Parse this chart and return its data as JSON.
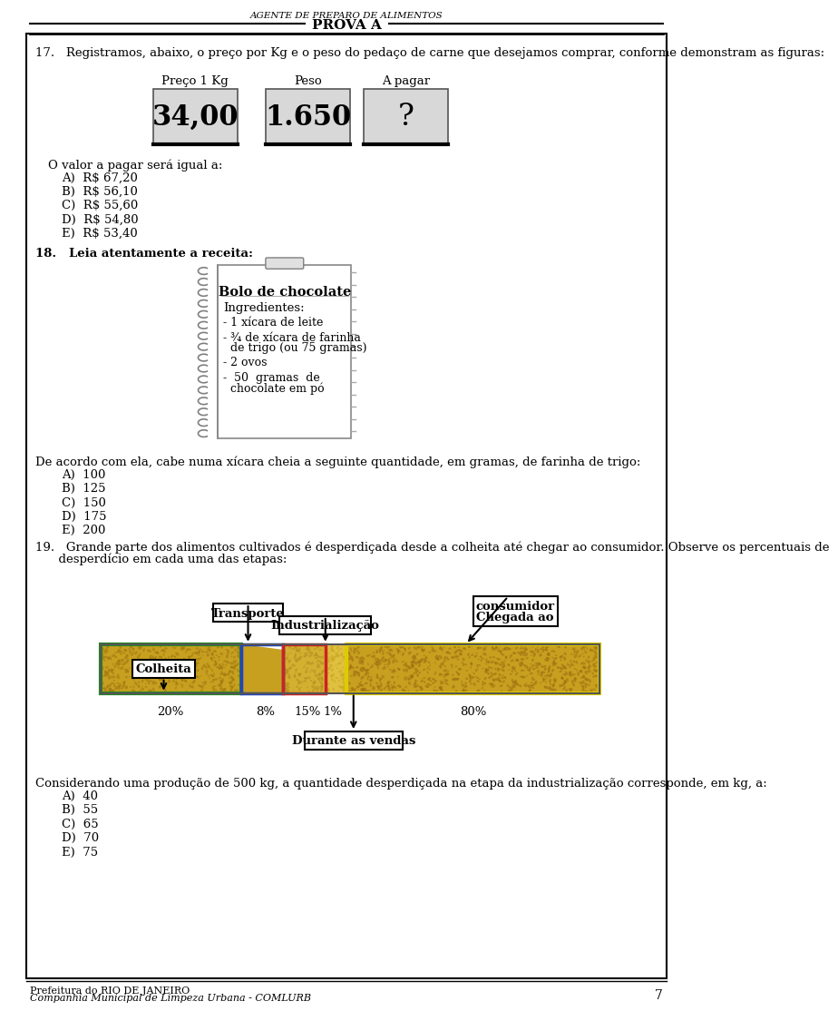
{
  "page_title_italic": "AGENTE DE PREPARO DE ALIMENTOS",
  "page_title_bold": "PROVA A",
  "page_number": "7",
  "footer_left1": "Prefeitura do RIO DE JANEIRO",
  "footer_left2": "Companhia Municipal de Limpeza Urbana - COMLURB",
  "q17_text": "17.   Registramos, abaixo, o preço por Kg e o peso do pedaço de carne que desejamos comprar, conforme demonstram as figuras:",
  "q17_labels": [
    "Preço 1 Kg",
    "Peso",
    "A pagar"
  ],
  "q17_values": [
    "34,00",
    "1.650",
    "?"
  ],
  "q17_answer_intro": "O valor a pagar será igual a:",
  "q17_answers": [
    "A)  R$ 67,20",
    "B)  R$ 56,10",
    "C)  R$ 55,60",
    "D)  R$ 54,80",
    "E)  R$ 53,40"
  ],
  "q18_text": "18.   Leia atentamente a receita:",
  "recipe_title": "Bolo de chocolate",
  "recipe_ingredients_title": "Ingredientes:",
  "q18_question": "De acordo com ela, cabe numa xícara cheia a seguinte quantidade, em gramas, de farinha de trigo:",
  "q18_answers": [
    "A)  100",
    "B)  125",
    "C)  150",
    "D)  175",
    "E)  200"
  ],
  "q19_line1": "19.   Grande parte dos alimentos cultivados é desperdiçada desde a colheita até chegar ao consumidor. Observe os percentuais de",
  "q19_line2": "      desperdício em cada uma das etapas:",
  "q19_labels": [
    "Colheita",
    "Transporte",
    "Industrialização",
    "Chegada ao\nconsumidor",
    "Durante as vendas"
  ],
  "q19_percentages": [
    "20%",
    "8%",
    "15%",
    "1%",
    "80%"
  ],
  "q19_question": "Considerando uma produção de 500 kg, a quantidade desperdiçada na etapa da industrialização corresponde, em kg, a:",
  "q19_answers": [
    "A)  40",
    "B)  55",
    "C)  65",
    "D)  70",
    "E)  75"
  ],
  "bg_color": "#ffffff",
  "text_color": "#000000"
}
